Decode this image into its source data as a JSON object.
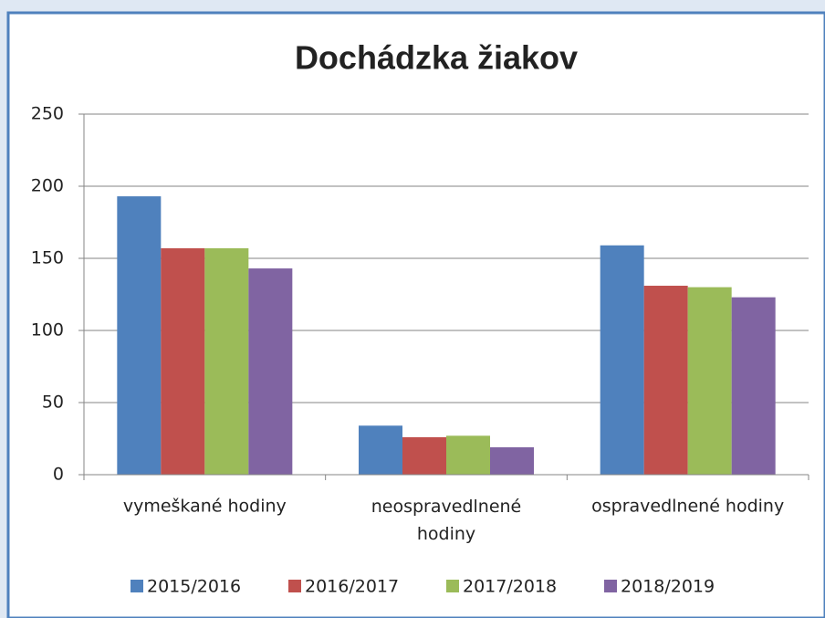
{
  "chart_data": {
    "type": "bar",
    "title": "Dochádzka žiakov",
    "categories": [
      "vymeškané hodiny",
      "neospravedlnené hodiny",
      "ospravedlnené hodiny"
    ],
    "series": [
      {
        "name": "2015/2016",
        "color": "#4f81bd",
        "values": [
          193,
          34,
          159
        ]
      },
      {
        "name": "2016/2017",
        "color": "#c0504d",
        "values": [
          157,
          26,
          131
        ]
      },
      {
        "name": "2017/2018",
        "color": "#9bbb59",
        "values": [
          157,
          27,
          130
        ]
      },
      {
        "name": "2018/2019",
        "color": "#8064a2",
        "values": [
          143,
          19,
          123
        ]
      }
    ],
    "ylim": [
      0,
      250
    ],
    "yticks": [
      0,
      50,
      100,
      150,
      200,
      250
    ],
    "grid": true,
    "legend": "bottom"
  }
}
